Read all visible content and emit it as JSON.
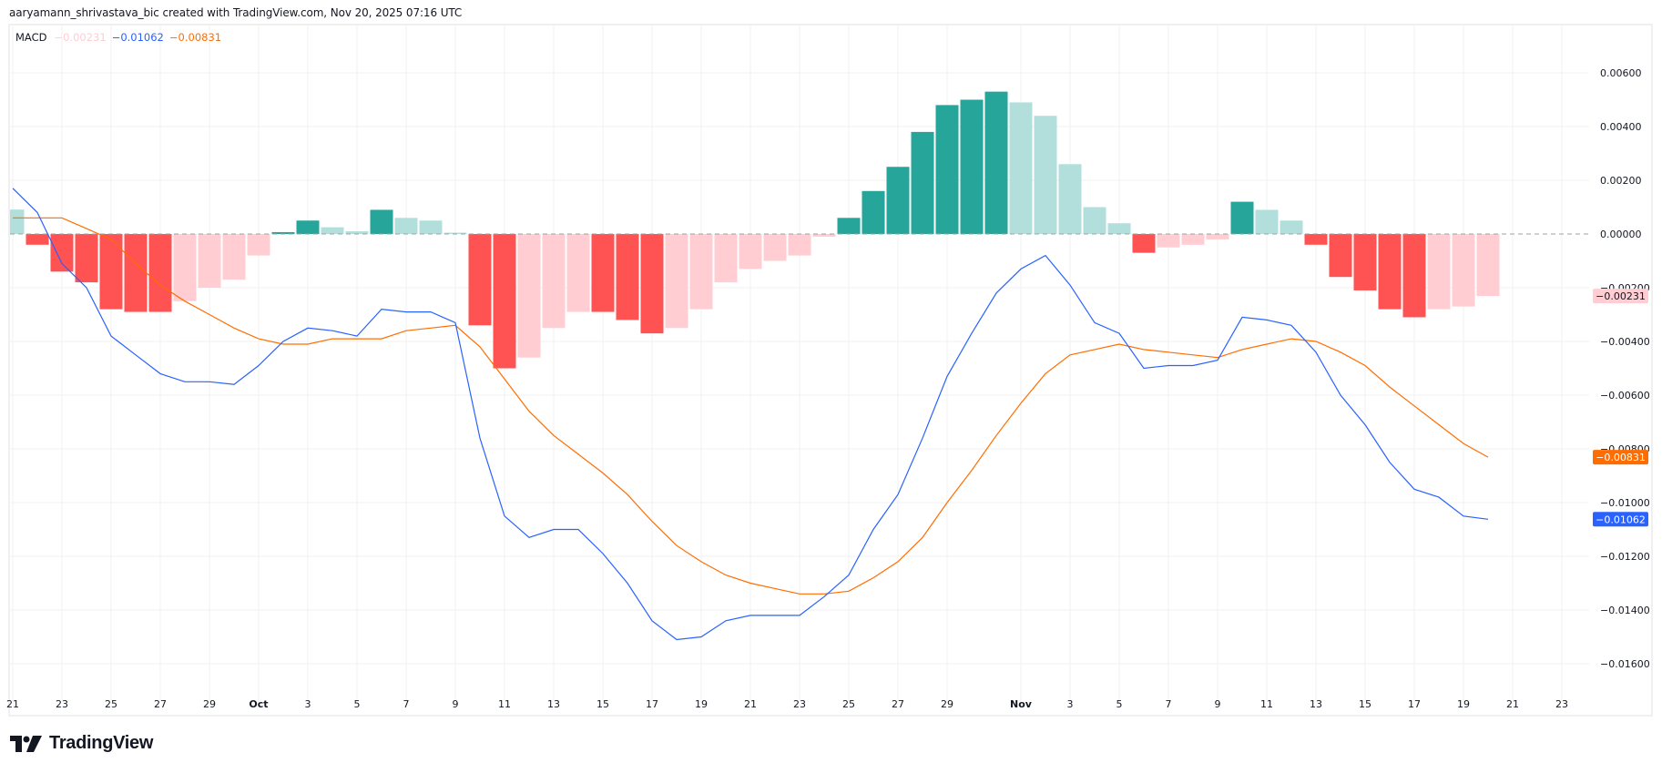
{
  "header": {
    "attribution": "aaryamann_shrivastava_bic created with TradingView.com, Nov 20, 2025 07:16 UTC"
  },
  "legend": {
    "indicator": "MACD",
    "histogram_value": "−0.00231",
    "macd_value": "−0.01062",
    "signal_value": "−0.00831"
  },
  "colors": {
    "hist_pos_strong": "#26a69a",
    "hist_pos_weak": "#b2dfdb",
    "hist_neg_strong": "#ff5252",
    "hist_neg_weak": "#ffcdd2",
    "macd_line": "#2962ff",
    "signal_line": "#ff6d00",
    "grid": "#f0f3fa",
    "zero_line": "#a0a0a0"
  },
  "footer": {
    "brand": "TradingView"
  },
  "chart_data": {
    "type": "bar+line",
    "title": "MACD",
    "xlabel": "",
    "ylabel": "",
    "ylim": [
      -0.017,
      0.0076
    ],
    "grid": true,
    "legend_position": "top-left",
    "x_start": "Sep 21",
    "x_end": "Nov 20",
    "x_ticks": [
      {
        "day": 0,
        "label": "21"
      },
      {
        "day": 2,
        "label": "23"
      },
      {
        "day": 4,
        "label": "25"
      },
      {
        "day": 6,
        "label": "27"
      },
      {
        "day": 8,
        "label": "29"
      },
      {
        "day": 10,
        "label": "Oct"
      },
      {
        "day": 12,
        "label": "3"
      },
      {
        "day": 14,
        "label": "5"
      },
      {
        "day": 16,
        "label": "7"
      },
      {
        "day": 18,
        "label": "9"
      },
      {
        "day": 20,
        "label": "11"
      },
      {
        "day": 22,
        "label": "13"
      },
      {
        "day": 24,
        "label": "15"
      },
      {
        "day": 26,
        "label": "17"
      },
      {
        "day": 28,
        "label": "19"
      },
      {
        "day": 30,
        "label": "21"
      },
      {
        "day": 32,
        "label": "23"
      },
      {
        "day": 34,
        "label": "25"
      },
      {
        "day": 36,
        "label": "27"
      },
      {
        "day": 38,
        "label": "29"
      },
      {
        "day": 41,
        "label": "Nov"
      },
      {
        "day": 43,
        "label": "3"
      },
      {
        "day": 45,
        "label": "5"
      },
      {
        "day": 47,
        "label": "7"
      },
      {
        "day": 49,
        "label": "9"
      },
      {
        "day": 51,
        "label": "11"
      },
      {
        "day": 53,
        "label": "13"
      },
      {
        "day": 55,
        "label": "15"
      },
      {
        "day": 57,
        "label": "17"
      },
      {
        "day": 59,
        "label": "19"
      },
      {
        "day": 61,
        "label": "21"
      },
      {
        "day": 63,
        "label": "23"
      }
    ],
    "y_ticks": [
      0.006,
      0.004,
      0.002,
      0.0,
      -0.002,
      -0.004,
      -0.006,
      -0.008,
      -0.01,
      -0.012,
      -0.014,
      -0.016
    ],
    "y_tick_labels": [
      "0.00600",
      "0.00400",
      "0.00200",
      "0.00000",
      "−0.00200",
      "−0.00400",
      "−0.00600",
      "−0.00800",
      "−0.01000",
      "−0.01200",
      "−0.01400",
      "−0.01600"
    ],
    "series": [
      {
        "name": "Histogram",
        "type": "bar",
        "values": [
          0.00091,
          -0.0004,
          -0.0014,
          -0.0018,
          -0.0028,
          -0.0029,
          -0.0029,
          -0.0025,
          -0.002,
          -0.0017,
          -0.0008,
          7e-05,
          0.0005,
          0.00025,
          0.0001,
          0.0009,
          0.0006,
          0.0005,
          5e-05,
          -0.0034,
          -0.005,
          -0.0046,
          -0.0035,
          -0.0029,
          -0.0029,
          -0.0032,
          -0.0037,
          -0.0035,
          -0.0028,
          -0.0018,
          -0.0013,
          -0.001,
          -0.0008,
          -0.0001,
          0.0006,
          0.0016,
          0.0025,
          0.0038,
          0.0048,
          0.005,
          0.0053,
          0.0049,
          0.0044,
          0.0026,
          0.001,
          0.0004,
          -0.0007,
          -0.0005,
          -0.0004,
          -0.0002,
          0.0012,
          0.0009,
          0.0005,
          -0.0004,
          -0.0016,
          -0.0021,
          -0.0028,
          -0.0031,
          -0.0028,
          -0.0027,
          -0.00231
        ]
      },
      {
        "name": "MACD",
        "type": "line",
        "values": [
          0.0017,
          0.0008,
          -0.0011,
          -0.002,
          -0.0038,
          -0.0045,
          -0.0052,
          -0.0055,
          -0.0055,
          -0.0056,
          -0.0049,
          -0.004,
          -0.0035,
          -0.0036,
          -0.0038,
          -0.0028,
          -0.0029,
          -0.0029,
          -0.0033,
          -0.0076,
          -0.0105,
          -0.0113,
          -0.011,
          -0.011,
          -0.0119,
          -0.013,
          -0.0144,
          -0.0151,
          -0.015,
          -0.0144,
          -0.0142,
          -0.0142,
          -0.0142,
          -0.0135,
          -0.0127,
          -0.011,
          -0.0097,
          -0.0076,
          -0.0053,
          -0.0037,
          -0.0022,
          -0.0013,
          -0.0008,
          -0.0019,
          -0.0033,
          -0.0037,
          -0.005,
          -0.0049,
          -0.0049,
          -0.0047,
          -0.0031,
          -0.0032,
          -0.0034,
          -0.0044,
          -0.006,
          -0.0071,
          -0.0085,
          -0.0095,
          -0.0098,
          -0.0105,
          -0.01062
        ]
      },
      {
        "name": "Signal",
        "type": "line",
        "values": [
          0.0006,
          0.0006,
          0.0006,
          0.0002,
          -0.0002,
          -0.0011,
          -0.0019,
          -0.0025,
          -0.003,
          -0.0035,
          -0.0039,
          -0.0041,
          -0.0041,
          -0.0039,
          -0.0039,
          -0.0039,
          -0.0036,
          -0.0035,
          -0.0034,
          -0.0042,
          -0.0054,
          -0.0066,
          -0.0075,
          -0.0082,
          -0.0089,
          -0.0097,
          -0.0107,
          -0.0116,
          -0.0122,
          -0.0127,
          -0.013,
          -0.0132,
          -0.0134,
          -0.0134,
          -0.0133,
          -0.0128,
          -0.0122,
          -0.0113,
          -0.01,
          -0.0088,
          -0.0075,
          -0.0063,
          -0.0052,
          -0.0045,
          -0.0043,
          -0.0041,
          -0.0043,
          -0.0044,
          -0.0045,
          -0.0046,
          -0.0043,
          -0.0041,
          -0.0039,
          -0.004,
          -0.0044,
          -0.0049,
          -0.0057,
          -0.0064,
          -0.0071,
          -0.0078,
          -0.00831
        ]
      }
    ],
    "price_badges": [
      {
        "series": "Histogram",
        "label": "−0.00231",
        "value": -0.00231,
        "bg": "#ffcdd2",
        "fg": "#131722"
      },
      {
        "series": "Signal",
        "label": "−0.00831",
        "value": -0.00831,
        "bg": "#ff6d00",
        "fg": "#ffffff"
      },
      {
        "series": "MACD",
        "label": "−0.01062",
        "value": -0.01062,
        "bg": "#2962ff",
        "fg": "#ffffff"
      }
    ]
  }
}
